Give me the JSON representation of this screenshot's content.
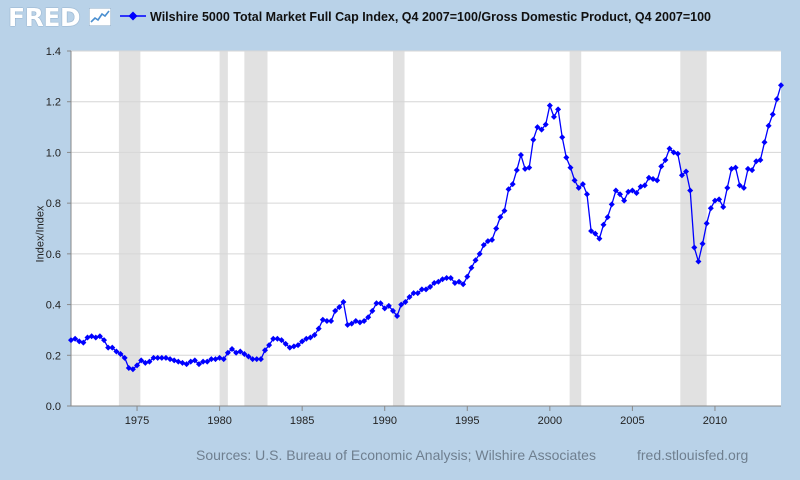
{
  "brand": {
    "logo_text": "FRED",
    "logo_icon": "trend-line-icon"
  },
  "chart_data": {
    "type": "line",
    "legend": "Wilshire 5000 Total Market Full Cap Index, Q4 2007=100/Gross Domestic Product, Q4 2007=100",
    "ylabel": "Index/Index",
    "ylim": [
      0,
      1.4
    ],
    "xlim": [
      1971.0,
      2014.0
    ],
    "y_ticks": [
      "0.0",
      "0.2",
      "0.4",
      "0.6",
      "0.8",
      "1.0",
      "1.2",
      "1.4"
    ],
    "x_ticks": [
      "1975",
      "1980",
      "1985",
      "1990",
      "1995",
      "2000",
      "2005",
      "2010"
    ],
    "grid": true,
    "series_color": "#0000ff",
    "recession_color": "#e1e1e1",
    "recessions": [
      [
        1973.9,
        1975.2
      ],
      [
        1980.0,
        1980.5
      ],
      [
        1981.5,
        1982.9
      ],
      [
        1990.5,
        1991.2
      ],
      [
        2001.2,
        2001.9
      ],
      [
        2007.9,
        2009.5
      ]
    ],
    "series": [
      {
        "name": "Wilshire 5000 Total Market Full Cap Index, Q4 2007=100/Gross Domestic Product, Q4 2007=100",
        "points": [
          [
            1971.0,
            0.26
          ],
          [
            1971.25,
            0.265
          ],
          [
            1971.5,
            0.255
          ],
          [
            1971.75,
            0.25
          ],
          [
            1972.0,
            0.27
          ],
          [
            1972.25,
            0.275
          ],
          [
            1972.5,
            0.27
          ],
          [
            1972.75,
            0.275
          ],
          [
            1973.0,
            0.26
          ],
          [
            1973.25,
            0.23
          ],
          [
            1973.5,
            0.23
          ],
          [
            1973.75,
            0.215
          ],
          [
            1974.0,
            0.205
          ],
          [
            1974.25,
            0.19
          ],
          [
            1974.5,
            0.15
          ],
          [
            1974.75,
            0.145
          ],
          [
            1975.0,
            0.16
          ],
          [
            1975.25,
            0.18
          ],
          [
            1975.5,
            0.17
          ],
          [
            1975.75,
            0.175
          ],
          [
            1976.0,
            0.19
          ],
          [
            1976.25,
            0.19
          ],
          [
            1976.5,
            0.19
          ],
          [
            1976.75,
            0.19
          ],
          [
            1977.0,
            0.185
          ],
          [
            1977.25,
            0.18
          ],
          [
            1977.5,
            0.175
          ],
          [
            1977.75,
            0.17
          ],
          [
            1978.0,
            0.165
          ],
          [
            1978.25,
            0.175
          ],
          [
            1978.5,
            0.18
          ],
          [
            1978.75,
            0.165
          ],
          [
            1979.0,
            0.175
          ],
          [
            1979.25,
            0.175
          ],
          [
            1979.5,
            0.185
          ],
          [
            1979.75,
            0.185
          ],
          [
            1980.0,
            0.19
          ],
          [
            1980.25,
            0.185
          ],
          [
            1980.5,
            0.21
          ],
          [
            1980.75,
            0.225
          ],
          [
            1981.0,
            0.21
          ],
          [
            1981.25,
            0.215
          ],
          [
            1981.5,
            0.205
          ],
          [
            1981.75,
            0.195
          ],
          [
            1982.0,
            0.185
          ],
          [
            1982.25,
            0.185
          ],
          [
            1982.5,
            0.185
          ],
          [
            1982.75,
            0.22
          ],
          [
            1983.0,
            0.24
          ],
          [
            1983.25,
            0.265
          ],
          [
            1983.5,
            0.265
          ],
          [
            1983.75,
            0.26
          ],
          [
            1984.0,
            0.245
          ],
          [
            1984.25,
            0.23
          ],
          [
            1984.5,
            0.235
          ],
          [
            1984.75,
            0.24
          ],
          [
            1985.0,
            0.255
          ],
          [
            1985.25,
            0.265
          ],
          [
            1985.5,
            0.27
          ],
          [
            1985.75,
            0.28
          ],
          [
            1986.0,
            0.305
          ],
          [
            1986.25,
            0.34
          ],
          [
            1986.5,
            0.335
          ],
          [
            1986.75,
            0.335
          ],
          [
            1987.0,
            0.375
          ],
          [
            1987.25,
            0.39
          ],
          [
            1987.5,
            0.41
          ],
          [
            1987.75,
            0.32
          ],
          [
            1988.0,
            0.325
          ],
          [
            1988.25,
            0.335
          ],
          [
            1988.5,
            0.33
          ],
          [
            1988.75,
            0.335
          ],
          [
            1989.0,
            0.35
          ],
          [
            1989.25,
            0.375
          ],
          [
            1989.5,
            0.405
          ],
          [
            1989.75,
            0.405
          ],
          [
            1990.0,
            0.385
          ],
          [
            1990.25,
            0.395
          ],
          [
            1990.5,
            0.375
          ],
          [
            1990.75,
            0.355
          ],
          [
            1991.0,
            0.4
          ],
          [
            1991.25,
            0.41
          ],
          [
            1991.5,
            0.43
          ],
          [
            1991.75,
            0.445
          ],
          [
            1992.0,
            0.445
          ],
          [
            1992.25,
            0.46
          ],
          [
            1992.5,
            0.46
          ],
          [
            1992.75,
            0.47
          ],
          [
            1993.0,
            0.485
          ],
          [
            1993.25,
            0.49
          ],
          [
            1993.5,
            0.5
          ],
          [
            1993.75,
            0.505
          ],
          [
            1994.0,
            0.505
          ],
          [
            1994.25,
            0.485
          ],
          [
            1994.5,
            0.49
          ],
          [
            1994.75,
            0.48
          ],
          [
            1995.0,
            0.51
          ],
          [
            1995.25,
            0.545
          ],
          [
            1995.5,
            0.575
          ],
          [
            1995.75,
            0.6
          ],
          [
            1996.0,
            0.635
          ],
          [
            1996.25,
            0.65
          ],
          [
            1996.5,
            0.655
          ],
          [
            1996.75,
            0.7
          ],
          [
            1997.0,
            0.745
          ],
          [
            1997.25,
            0.77
          ],
          [
            1997.5,
            0.855
          ],
          [
            1997.75,
            0.875
          ],
          [
            1998.0,
            0.93
          ],
          [
            1998.25,
            0.99
          ],
          [
            1998.5,
            0.935
          ],
          [
            1998.75,
            0.94
          ],
          [
            1999.0,
            1.05
          ],
          [
            1999.25,
            1.1
          ],
          [
            1999.5,
            1.09
          ],
          [
            1999.75,
            1.11
          ],
          [
            2000.0,
            1.185
          ],
          [
            2000.25,
            1.14
          ],
          [
            2000.5,
            1.17
          ],
          [
            2000.75,
            1.06
          ],
          [
            2001.0,
            0.98
          ],
          [
            2001.25,
            0.94
          ],
          [
            2001.5,
            0.89
          ],
          [
            2001.75,
            0.86
          ],
          [
            2002.0,
            0.875
          ],
          [
            2002.25,
            0.835
          ],
          [
            2002.5,
            0.69
          ],
          [
            2002.75,
            0.68
          ],
          [
            2003.0,
            0.66
          ],
          [
            2003.25,
            0.715
          ],
          [
            2003.5,
            0.745
          ],
          [
            2003.75,
            0.795
          ],
          [
            2004.0,
            0.85
          ],
          [
            2004.25,
            0.835
          ],
          [
            2004.5,
            0.81
          ],
          [
            2004.75,
            0.845
          ],
          [
            2005.0,
            0.85
          ],
          [
            2005.25,
            0.84
          ],
          [
            2005.5,
            0.865
          ],
          [
            2005.75,
            0.87
          ],
          [
            2006.0,
            0.9
          ],
          [
            2006.25,
            0.895
          ],
          [
            2006.5,
            0.89
          ],
          [
            2006.75,
            0.945
          ],
          [
            2007.0,
            0.97
          ],
          [
            2007.25,
            1.015
          ],
          [
            2007.5,
            1.0
          ],
          [
            2007.75,
            0.995
          ],
          [
            2008.0,
            0.91
          ],
          [
            2008.25,
            0.925
          ],
          [
            2008.5,
            0.85
          ],
          [
            2008.75,
            0.625
          ],
          [
            2009.0,
            0.57
          ],
          [
            2009.25,
            0.64
          ],
          [
            2009.5,
            0.72
          ],
          [
            2009.75,
            0.78
          ],
          [
            2010.0,
            0.81
          ],
          [
            2010.25,
            0.815
          ],
          [
            2010.5,
            0.785
          ],
          [
            2010.75,
            0.86
          ],
          [
            2011.0,
            0.935
          ],
          [
            2011.25,
            0.94
          ],
          [
            2011.5,
            0.87
          ],
          [
            2011.75,
            0.86
          ],
          [
            2012.0,
            0.935
          ],
          [
            2012.25,
            0.93
          ],
          [
            2012.5,
            0.965
          ],
          [
            2012.75,
            0.97
          ],
          [
            2013.0,
            1.04
          ],
          [
            2013.25,
            1.105
          ],
          [
            2013.5,
            1.15
          ],
          [
            2013.75,
            1.21
          ],
          [
            2014.0,
            1.265
          ]
        ]
      }
    ]
  },
  "footer": {
    "source": "Sources: U.S. Bureau of Economic Analysis; Wilshire Associates",
    "url": "fred.stlouisfed.org"
  }
}
